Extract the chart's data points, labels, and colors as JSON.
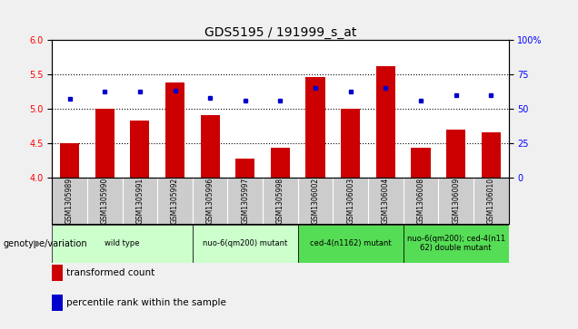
{
  "title": "GDS5195 / 191999_s_at",
  "samples": [
    "GSM1305989",
    "GSM1305990",
    "GSM1305991",
    "GSM1305992",
    "GSM1305996",
    "GSM1305997",
    "GSM1305998",
    "GSM1306002",
    "GSM1306003",
    "GSM1306004",
    "GSM1306008",
    "GSM1306009",
    "GSM1306010"
  ],
  "transformed_count": [
    4.5,
    5.0,
    4.83,
    5.38,
    4.9,
    4.28,
    4.43,
    5.45,
    5.0,
    5.62,
    4.43,
    4.7,
    4.65
  ],
  "percentile_rank": [
    57,
    62,
    62,
    63,
    58,
    56,
    56,
    65,
    62,
    65,
    56,
    60,
    60
  ],
  "bar_color": "#cc0000",
  "dot_color": "#0000cc",
  "ylim_left": [
    4.0,
    6.0
  ],
  "ylim_right": [
    0,
    100
  ],
  "yticks_left": [
    4.0,
    4.5,
    5.0,
    5.5,
    6.0
  ],
  "yticks_right": [
    0,
    25,
    50,
    75,
    100
  ],
  "ytick_labels_right": [
    "0",
    "25",
    "50",
    "75",
    "100%"
  ],
  "gridlines": [
    4.5,
    5.0,
    5.5
  ],
  "genotype_groups": [
    {
      "label": "wild type",
      "indices": [
        0,
        1,
        2,
        3
      ],
      "color": "#ccffcc"
    },
    {
      "label": "nuo-6(qm200) mutant",
      "indices": [
        4,
        5,
        6
      ],
      "color": "#ccffcc"
    },
    {
      "label": "ced-4(n1162) mutant",
      "indices": [
        7,
        8,
        9
      ],
      "color": "#55dd55"
    },
    {
      "label": "nuo-6(qm200); ced-4(n11\n62) double mutant",
      "indices": [
        10,
        11,
        12
      ],
      "color": "#55dd55"
    }
  ],
  "genotype_label": "genotype/variation",
  "legend_items": [
    {
      "label": "transformed count",
      "color": "#cc0000"
    },
    {
      "label": "percentile rank within the sample",
      "color": "#0000cc"
    }
  ],
  "bar_width": 0.55,
  "xtick_bg_color": "#cccccc",
  "fig_bg_color": "#f0f0f0",
  "plot_bg": "#ffffff",
  "title_fontsize": 10,
  "axis_label_fontsize": 7,
  "tick_fontsize": 7,
  "legend_fontsize": 7.5,
  "sample_fontsize": 5.5
}
